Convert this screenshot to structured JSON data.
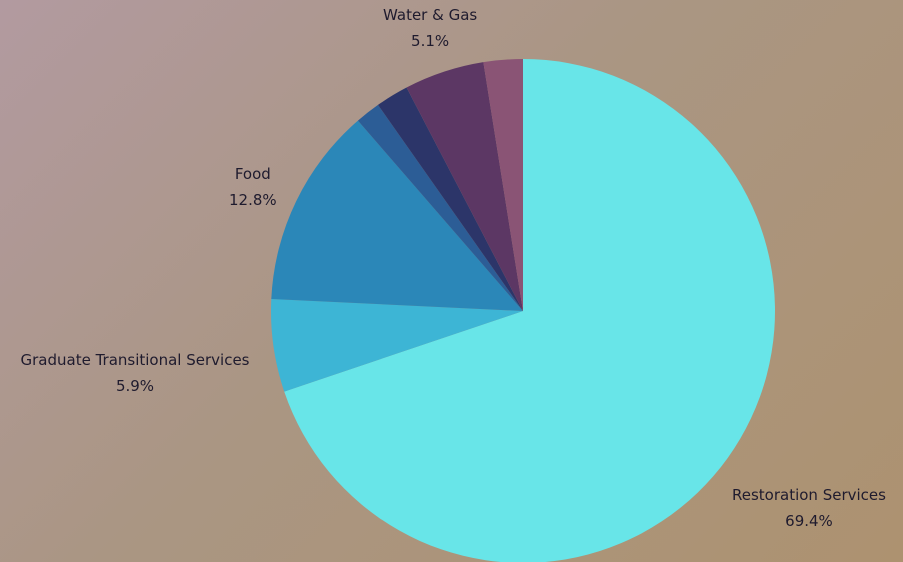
{
  "chart_data": {
    "type": "pie",
    "title": "",
    "start_angle_deg": 0,
    "direction": "clockwise",
    "slices": [
      {
        "label": "Restoration Services",
        "value": 69.4,
        "value_label": "69.4%",
        "color": "#68e5e8",
        "show_label": true
      },
      {
        "label": "Graduate Transitional Services",
        "value": 5.9,
        "value_label": "5.9%",
        "color": "#3db5d5",
        "show_label": true
      },
      {
        "label": "Food",
        "value": 12.8,
        "value_label": "12.8%",
        "color": "#2b87b8",
        "show_label": true
      },
      {
        "label": "",
        "value": 1.6,
        "value_label": "",
        "color": "#2c5d96",
        "show_label": false
      },
      {
        "label": "",
        "value": 2.1,
        "value_label": "",
        "color": "#2c3569",
        "show_label": false
      },
      {
        "label": "Water & Gas",
        "value": 5.1,
        "value_label": "5.1%",
        "color": "#5c3764",
        "show_label": true
      },
      {
        "label": "",
        "value": 2.5,
        "value_label": "",
        "color": "#8a5475",
        "show_label": false
      }
    ]
  }
}
